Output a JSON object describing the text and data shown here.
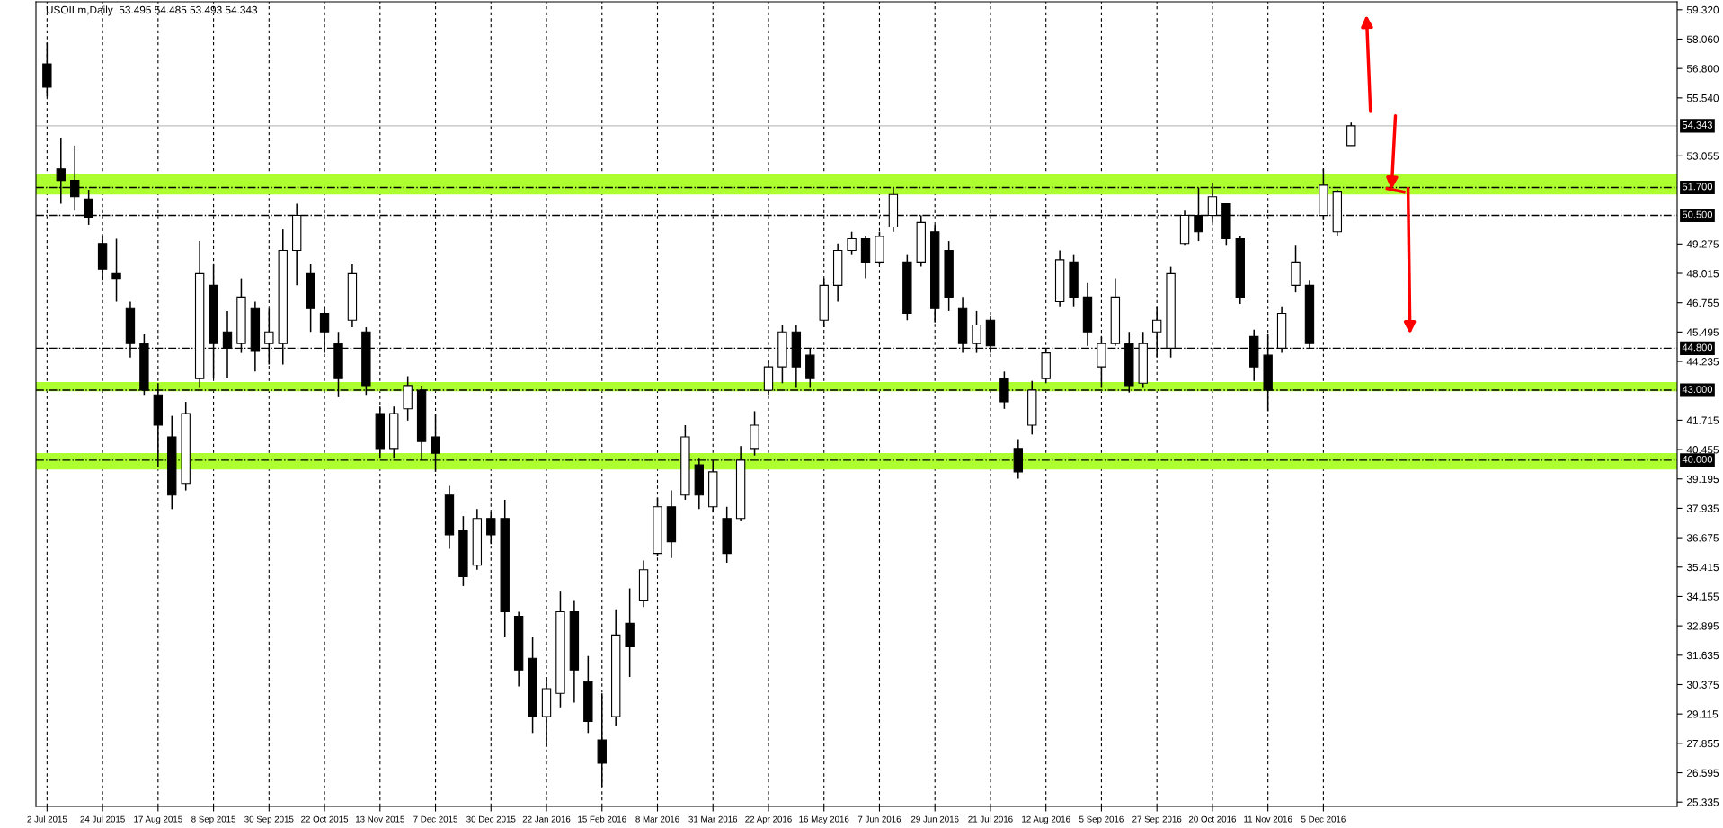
{
  "chart_data": {
    "type": "candlestick",
    "title": "USOILm,Daily  53.495 54.485 53.493 54.343",
    "categories": [
      "2 Jul 2015",
      null,
      null,
      null,
      "24 Jul 2015",
      null,
      null,
      null,
      "17 Aug 2015",
      null,
      null,
      null,
      "8 Sep 2015",
      null,
      null,
      null,
      "30 Sep 2015",
      null,
      null,
      null,
      "22 Oct 2015",
      null,
      null,
      null,
      "13 Nov 2015",
      null,
      null,
      null,
      "7 Dec 2015",
      null,
      null,
      null,
      "30 Dec 2015",
      null,
      null,
      null,
      "22 Jan 2016",
      null,
      null,
      null,
      "15 Feb 2016",
      null,
      null,
      null,
      "8 Mar 2016",
      null,
      null,
      null,
      "31 Mar 2016",
      null,
      null,
      null,
      "22 Apr 2016",
      null,
      null,
      null,
      "16 May 2016",
      null,
      null,
      null,
      "7 Jun 2016",
      null,
      null,
      null,
      "29 Jun 2016",
      null,
      null,
      null,
      "21 Jul 2016",
      null,
      null,
      null,
      "12 Aug 2016",
      null,
      null,
      null,
      "5 Sep 2016",
      null,
      null,
      null,
      "27 Sep 2016",
      null,
      null,
      null,
      "20 Oct 2016",
      null,
      null,
      null,
      "11 Nov 2016",
      null,
      null,
      null,
      "5 Dec 2016",
      null,
      null,
      null,
      null,
      null,
      null,
      null,
      null,
      null,
      null,
      null,
      null,
      null,
      null,
      null,
      null,
      null,
      null,
      null,
      null,
      null,
      null,
      null,
      null,
      null
    ],
    "series": [
      {
        "color": "#000000",
        "ohlc": [
          [
            57.0,
            57.9,
            55.6,
            56.0
          ],
          [
            52.5,
            53.8,
            51.0,
            52.0
          ],
          [
            52.0,
            53.5,
            50.7,
            51.3
          ],
          [
            51.2,
            51.6,
            50.1,
            50.4
          ],
          [
            49.3,
            49.6,
            47.7,
            48.2
          ],
          [
            48.0,
            49.5,
            46.8,
            47.8
          ],
          [
            46.5,
            46.8,
            44.4,
            45.0
          ],
          [
            45.0,
            45.4,
            42.8,
            43.0
          ],
          [
            42.8,
            43.3,
            39.7,
            41.5
          ],
          [
            41.0,
            41.9,
            37.9,
            38.5
          ],
          [
            39.0,
            42.5,
            38.7,
            42.0
          ],
          [
            43.5,
            49.4,
            43.1,
            48.0
          ],
          [
            47.5,
            48.4,
            43.5,
            45.0
          ],
          [
            45.5,
            46.4,
            43.5,
            44.8
          ],
          [
            45.0,
            47.8,
            44.6,
            47.0
          ],
          [
            46.5,
            46.8,
            43.8,
            44.7
          ],
          [
            45.0,
            46.5,
            44.1,
            45.5
          ],
          [
            45.0,
            49.9,
            44.1,
            49.0
          ],
          [
            49.0,
            51.0,
            47.5,
            50.5
          ],
          [
            48.0,
            48.4,
            45.5,
            46.5
          ],
          [
            46.3,
            46.6,
            44.6,
            45.5
          ],
          [
            45.0,
            45.5,
            42.7,
            43.5
          ],
          [
            46.0,
            48.4,
            45.7,
            48.0
          ],
          [
            45.5,
            45.7,
            42.8,
            43.2
          ],
          [
            42.0,
            42.3,
            40.1,
            40.5
          ],
          [
            40.5,
            42.3,
            40.1,
            42.0
          ],
          [
            42.2,
            43.6,
            41.7,
            43.2
          ],
          [
            43.0,
            43.2,
            40.0,
            40.8
          ],
          [
            41.0,
            42.0,
            39.5,
            40.3
          ],
          [
            38.5,
            38.9,
            36.2,
            36.8
          ],
          [
            37.0,
            37.6,
            34.6,
            35.0
          ],
          [
            35.5,
            37.9,
            35.3,
            37.5
          ],
          [
            37.5,
            37.8,
            36.4,
            36.8
          ],
          [
            37.5,
            38.3,
            32.4,
            33.5
          ],
          [
            33.3,
            33.5,
            30.3,
            31.0
          ],
          [
            31.5,
            32.4,
            28.3,
            29.0
          ],
          [
            29.0,
            30.7,
            27.7,
            30.2
          ],
          [
            30.0,
            34.4,
            29.4,
            33.5
          ],
          [
            33.5,
            34.0,
            29.6,
            31.0
          ],
          [
            30.5,
            31.6,
            28.3,
            28.8
          ],
          [
            28.0,
            30.0,
            26.0,
            27.0
          ],
          [
            29.0,
            33.6,
            28.6,
            32.5
          ],
          [
            33.0,
            34.5,
            30.7,
            32.0
          ],
          [
            34.0,
            35.7,
            33.7,
            35.3
          ],
          [
            36.0,
            38.4,
            35.9,
            38.0
          ],
          [
            38.0,
            38.7,
            35.8,
            36.5
          ],
          [
            38.5,
            41.5,
            38.3,
            41.0
          ],
          [
            39.8,
            40.1,
            37.9,
            38.5
          ],
          [
            38.0,
            40.0,
            37.8,
            39.5
          ],
          [
            37.5,
            38.0,
            35.6,
            36.0
          ],
          [
            37.5,
            40.6,
            37.4,
            40.0
          ],
          [
            40.5,
            42.1,
            40.2,
            41.5
          ],
          [
            43.0,
            44.3,
            42.8,
            44.0
          ],
          [
            44.0,
            45.8,
            43.3,
            45.5
          ],
          [
            45.5,
            45.8,
            43.1,
            44.0
          ],
          [
            44.5,
            44.8,
            43.1,
            43.5
          ],
          [
            46.0,
            47.8,
            45.7,
            47.5
          ],
          [
            47.5,
            49.3,
            46.8,
            49.0
          ],
          [
            49.0,
            49.8,
            48.8,
            49.5
          ],
          [
            49.5,
            49.6,
            47.8,
            48.5
          ],
          [
            48.5,
            49.8,
            48.4,
            49.6
          ],
          [
            50.0,
            51.7,
            49.8,
            51.4
          ],
          [
            48.5,
            48.8,
            46.0,
            46.3
          ],
          [
            48.5,
            50.5,
            48.3,
            50.2
          ],
          [
            49.8,
            50.1,
            45.9,
            46.5
          ],
          [
            49.0,
            49.4,
            46.4,
            47.0
          ],
          [
            46.5,
            47.0,
            44.6,
            45.0
          ],
          [
            45.0,
            46.4,
            44.6,
            45.8
          ],
          [
            46.0,
            46.2,
            44.6,
            44.9
          ],
          [
            43.5,
            43.8,
            42.2,
            42.5
          ],
          [
            40.5,
            40.9,
            39.2,
            39.5
          ],
          [
            41.5,
            43.4,
            41.1,
            43.0
          ],
          [
            43.5,
            44.8,
            43.3,
            44.6
          ],
          [
            46.8,
            49.0,
            46.6,
            48.6
          ],
          [
            48.5,
            48.8,
            46.6,
            47.0
          ],
          [
            47.0,
            47.6,
            44.9,
            45.5
          ],
          [
            44.0,
            45.3,
            43.1,
            45.0
          ],
          [
            45.0,
            47.8,
            44.9,
            47.0
          ],
          [
            45.0,
            45.5,
            42.9,
            43.2
          ],
          [
            43.3,
            45.5,
            43.1,
            45.0
          ],
          [
            45.5,
            46.6,
            44.4,
            46.0
          ],
          [
            44.8,
            48.3,
            44.4,
            48.0
          ],
          [
            49.3,
            50.7,
            49.2,
            50.5
          ],
          [
            50.5,
            51.7,
            49.4,
            49.8
          ],
          [
            50.5,
            51.9,
            50.2,
            51.3
          ],
          [
            51.0,
            51.0,
            49.2,
            49.5
          ],
          [
            49.5,
            49.6,
            46.7,
            47.0
          ],
          [
            45.3,
            45.6,
            43.4,
            44.0
          ],
          [
            44.5,
            45.4,
            42.1,
            43.0
          ],
          [
            44.8,
            46.6,
            44.6,
            46.3
          ],
          [
            47.5,
            49.2,
            47.2,
            48.5
          ],
          [
            47.5,
            47.7,
            44.8,
            45.0
          ],
          [
            50.5,
            52.5,
            50.3,
            51.8
          ],
          [
            49.8,
            51.6,
            49.6,
            51.5
          ],
          [
            53.495,
            54.485,
            53.493,
            54.343
          ],
          null,
          null,
          null,
          null,
          null,
          null,
          null,
          null,
          null,
          null,
          null,
          null,
          null,
          null,
          null,
          null,
          null,
          null,
          null,
          null,
          null,
          null,
          null
        ]
      }
    ],
    "ylim": [
      25.15,
      59.66
    ],
    "yticks": [
      {
        "value": 59.32,
        "label": "59.320"
      },
      {
        "value": 58.06,
        "label": "58.060"
      },
      {
        "value": 56.8,
        "label": "56.800"
      },
      {
        "value": 55.54,
        "label": "55.540"
      },
      {
        "value": 53.055,
        "label": "53.055"
      },
      {
        "value": 49.275,
        "label": "49.275"
      },
      {
        "value": 48.015,
        "label": "48.015"
      },
      {
        "value": 46.755,
        "label": "46.755"
      },
      {
        "value": 45.495,
        "label": "45.495"
      },
      {
        "value": 44.235,
        "label": "44.235"
      },
      {
        "value": 41.715,
        "label": "41.715"
      },
      {
        "value": 40.455,
        "label": "40.455"
      },
      {
        "value": 39.195,
        "label": "39.195"
      },
      {
        "value": 37.935,
        "label": "37.935"
      },
      {
        "value": 36.675,
        "label": "36.675"
      },
      {
        "value": 35.415,
        "label": "35.415"
      },
      {
        "value": 34.155,
        "label": "34.155"
      },
      {
        "value": 32.895,
        "label": "32.895"
      },
      {
        "value": 31.635,
        "label": "31.635"
      },
      {
        "value": 30.375,
        "label": "30.375"
      },
      {
        "value": 29.115,
        "label": "29.115"
      },
      {
        "value": 27.855,
        "label": "27.855"
      },
      {
        "value": 26.595,
        "label": "26.595"
      },
      {
        "value": 25.335,
        "label": "25.335"
      }
    ],
    "grid": "x",
    "ref_lines": [
      {
        "axis": "y",
        "value": 54.343,
        "label": "54.343",
        "color": "#c0c0c0",
        "line_style": "solid"
      },
      {
        "axis": "y",
        "value": 51.7,
        "label": "51.700",
        "color": "#000000",
        "line_style": "dashdot"
      },
      {
        "axis": "y",
        "value": 50.5,
        "label": "50.500",
        "color": "#000000",
        "line_style": "dashdot"
      },
      {
        "axis": "y",
        "value": 44.8,
        "label": "44.800",
        "color": "#000000",
        "line_style": "dashdot"
      },
      {
        "axis": "y",
        "value": 43.0,
        "label": "43.000",
        "color": "#000000",
        "line_style": "dashdot"
      },
      {
        "axis": "y",
        "value": 40.0,
        "label": "40.000",
        "color": "#000000",
        "line_style": "dashdot"
      }
    ],
    "bands": [
      {
        "axis": "y",
        "from": 51.4,
        "to": 52.3,
        "color": "#adff2f"
      },
      {
        "axis": "y",
        "from": 42.95,
        "to": 43.35,
        "color": "#adff2f"
      },
      {
        "axis": "y",
        "from": 39.6,
        "to": 40.3,
        "color": "#adff2f"
      }
    ]
  }
}
